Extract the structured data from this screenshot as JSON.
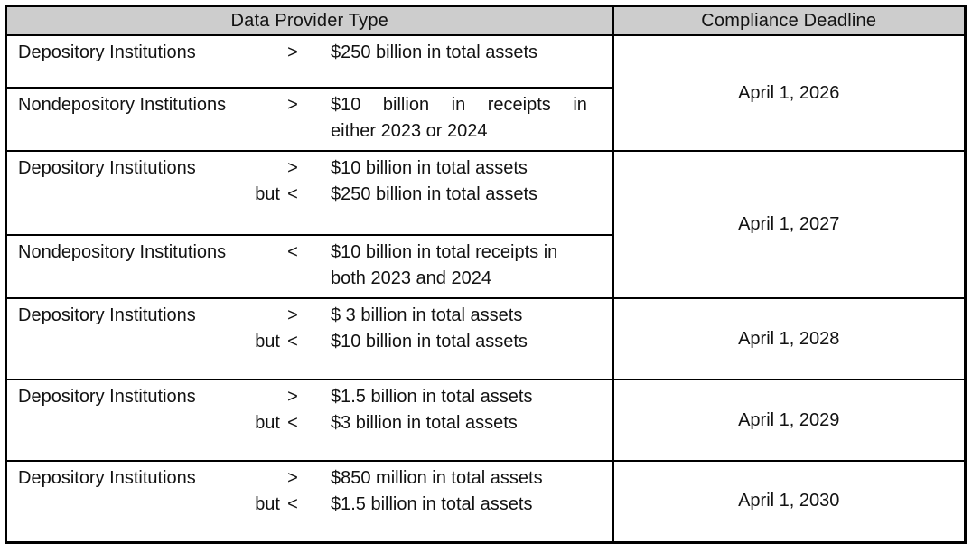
{
  "table": {
    "headers": {
      "data_provider_type": "Data Provider Type",
      "compliance_deadline": "Compliance Deadline"
    },
    "colors": {
      "header_bg": "#cdcdcd",
      "border": "#000000",
      "text": "#121212"
    },
    "rows": [
      {
        "lines": [
          {
            "name": "Depository Institutions",
            "op": ">",
            "threshold": "$250 billion in total assets"
          }
        ],
        "deadline": "April 1, 2026"
      },
      {
        "lines": [
          {
            "name": "Nondepository Institutions",
            "op": ">",
            "threshold_line1": "$10 billion in receipts in",
            "threshold_line2": "either 2023 or 2024"
          }
        ]
      },
      {
        "lines": [
          {
            "name": "Depository Institutions",
            "op": ">",
            "threshold": "$10 billion in total assets"
          },
          {
            "name": "but",
            "op": "<",
            "threshold": "$250 billion in total assets"
          }
        ],
        "deadline": "April 1, 2027"
      },
      {
        "lines": [
          {
            "name": "Nondepository Institutions",
            "op": "<",
            "threshold_line1": "$10 billion in total receipts in",
            "threshold_line2": "both 2023 and 2024"
          }
        ]
      },
      {
        "lines": [
          {
            "name": "Depository Institutions",
            "op": ">",
            "threshold": "$ 3 billion in total assets"
          },
          {
            "name": "but",
            "op": "<",
            "threshold": "$10 billion in total assets"
          }
        ],
        "deadline": "April 1, 2028"
      },
      {
        "lines": [
          {
            "name": "Depository Institutions",
            "op": ">",
            "threshold": "$1.5 billion in total assets"
          },
          {
            "name": "but",
            "op": "<",
            "threshold": "$3 billion in total assets"
          }
        ],
        "deadline": "April 1, 2029"
      },
      {
        "lines": [
          {
            "name": "Depository Institutions",
            "op": ">",
            "threshold": "$850 million in total assets"
          },
          {
            "name": "but",
            "op": "<",
            "threshold": "$1.5 billion in total assets"
          }
        ],
        "deadline": "April 1, 2030"
      }
    ]
  }
}
